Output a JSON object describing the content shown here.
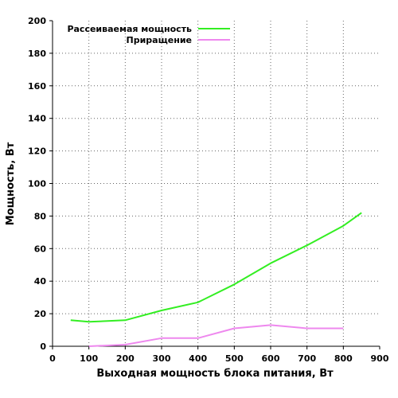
{
  "chart_data": {
    "type": "line",
    "title": "",
    "xlabel": "Выходная мощность блока питания, Вт",
    "ylabel": "Мощность, Вт",
    "xlim": [
      0,
      900
    ],
    "ylim": [
      0,
      200
    ],
    "x_ticks": [
      0,
      100,
      200,
      300,
      400,
      500,
      600,
      700,
      800,
      900
    ],
    "y_ticks": [
      0,
      20,
      40,
      60,
      80,
      100,
      120,
      140,
      160,
      180,
      200
    ],
    "grid": true,
    "legend_position": "top-right",
    "series": [
      {
        "name": "Рассеиваемая мощность",
        "color": "#33ee22",
        "points": [
          [
            50,
            16
          ],
          [
            100,
            15
          ],
          [
            200,
            16
          ],
          [
            300,
            22
          ],
          [
            400,
            27
          ],
          [
            500,
            38
          ],
          [
            600,
            51
          ],
          [
            700,
            62
          ],
          [
            800,
            74
          ],
          [
            850,
            82
          ]
        ]
      },
      {
        "name": "Приращение",
        "color": "#ee88ee",
        "points": [
          [
            100,
            0
          ],
          [
            200,
            1
          ],
          [
            300,
            5
          ],
          [
            400,
            5
          ],
          [
            500,
            11
          ],
          [
            600,
            13
          ],
          [
            700,
            11
          ],
          [
            800,
            11
          ]
        ]
      }
    ]
  }
}
